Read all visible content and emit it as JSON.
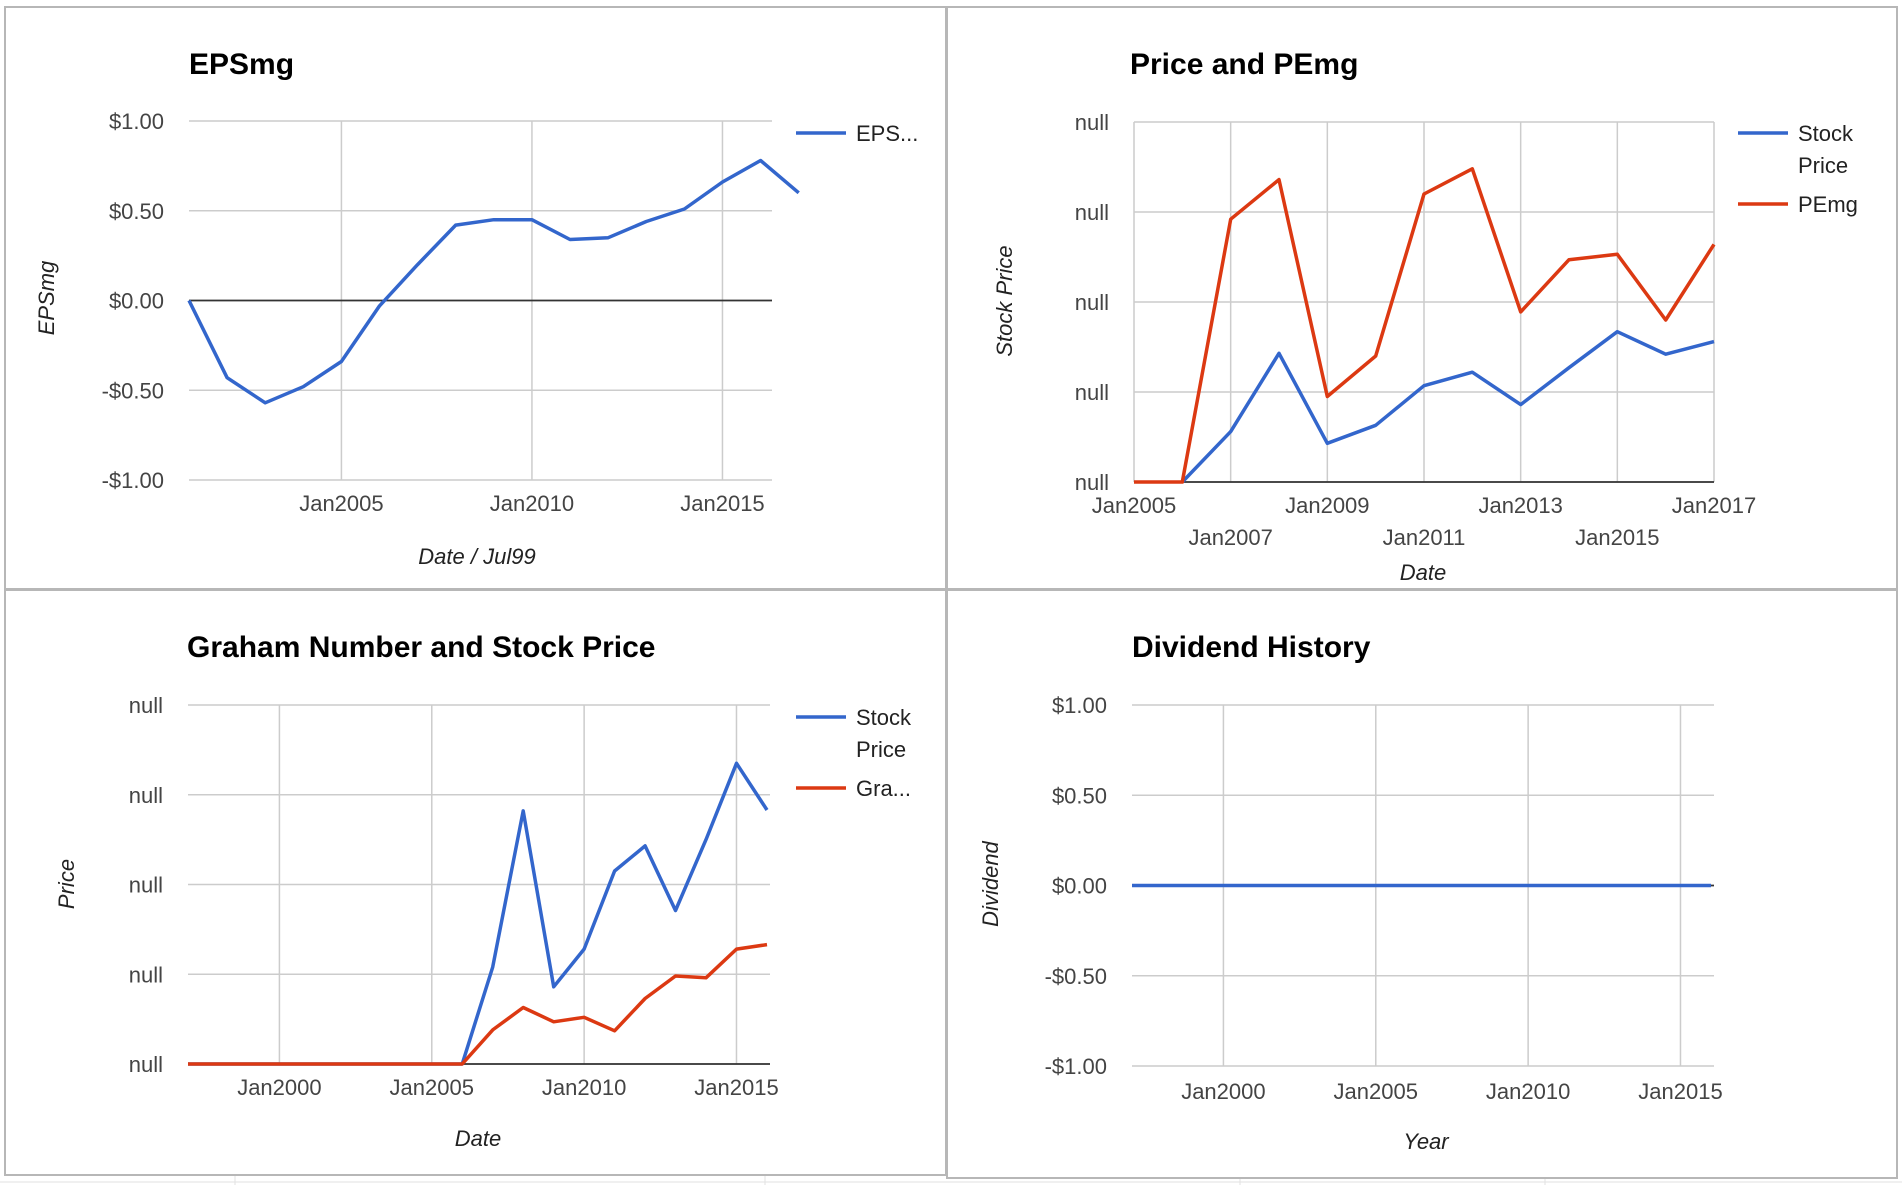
{
  "chart_data": [
    {
      "type": "line",
      "title": "EPSmg",
      "xlabel": "Date / Jul99",
      "ylabel": "EPSmg",
      "ylim": [
        -1.0,
        1.0
      ],
      "yticks": [
        "$1.00",
        "$0.50",
        "$0.00",
        "-$0.50",
        "-$1.00"
      ],
      "xlim": [
        2001.0,
        2016.3
      ],
      "xticks": [
        {
          "label": "Jan2005",
          "x": 2005
        },
        {
          "label": "Jan2010",
          "x": 2010
        },
        {
          "label": "Jan2015",
          "x": 2015
        }
      ],
      "legend": "right",
      "grid": true,
      "series": [
        {
          "name": "EPS...",
          "color": "#3366cc",
          "x": [
            2001.0,
            2002.0,
            2003.0,
            2004.0,
            2005.0,
            2006.0,
            2007.0,
            2008.0,
            2009.0,
            2010.0,
            2011.0,
            2012.0,
            2013.0,
            2014.0,
            2015.0,
            2016.0,
            2017.0
          ],
          "y": [
            0.0,
            -0.43,
            -0.57,
            -0.48,
            -0.34,
            -0.03,
            0.2,
            0.42,
            0.45,
            0.45,
            0.34,
            0.35,
            0.44,
            0.51,
            0.66,
            0.78,
            0.6
          ]
        }
      ]
    },
    {
      "type": "line",
      "title": "Price and PEmg",
      "xlabel": "Date",
      "ylabel": "Stock Price",
      "ylim": [
        0,
        4
      ],
      "yticks": [
        "null",
        "null",
        "null",
        "null",
        "null"
      ],
      "xlim": [
        2005.0,
        2017.0
      ],
      "xticks": [
        {
          "label": "Jan2005",
          "x": 2005,
          "row": 0
        },
        {
          "label": "Jan2007",
          "x": 2007,
          "row": 1
        },
        {
          "label": "Jan2009",
          "x": 2009,
          "row": 0
        },
        {
          "label": "Jan2011",
          "x": 2011,
          "row": 1
        },
        {
          "label": "Jan2013",
          "x": 2013,
          "row": 0
        },
        {
          "label": "Jan2015",
          "x": 2015,
          "row": 1
        },
        {
          "label": "Jan2017",
          "x": 2017,
          "row": 0
        }
      ],
      "legend": "right",
      "grid": true,
      "series": [
        {
          "name": "Stock Price",
          "color": "#3366cc",
          "x": [
            2006.0,
            2007.0,
            2008.0,
            2009.0,
            2010.0,
            2011.0,
            2012.0,
            2013.0,
            2014.0,
            2015.0,
            2016.0,
            2017.0
          ],
          "y": [
            0,
            0.56,
            1.43,
            0.43,
            0.63,
            1.07,
            1.22,
            0.86,
            1.27,
            1.67,
            1.42,
            1.56
          ]
        },
        {
          "name": "PEmg",
          "color": "#dc3912",
          "x": [
            2005.0,
            2006.0,
            2007.0,
            2008.0,
            2009.0,
            2010.0,
            2011.0,
            2012.0,
            2013.0,
            2014.0,
            2015.0,
            2016.0,
            2017.0
          ],
          "y": [
            0,
            0,
            2.92,
            3.36,
            0.95,
            1.4,
            3.2,
            3.48,
            1.89,
            2.47,
            2.53,
            1.8,
            2.64
          ]
        }
      ]
    },
    {
      "type": "line",
      "title": "Graham Number and Stock Price",
      "xlabel": "Date",
      "ylabel": "Price",
      "ylim": [
        0,
        4
      ],
      "yticks": [
        "null",
        "null",
        "null",
        "null",
        "null"
      ],
      "xlim": [
        1997.0,
        2016.1
      ],
      "xticks": [
        {
          "label": "Jan2000",
          "x": 2000
        },
        {
          "label": "Jan2005",
          "x": 2005
        },
        {
          "label": "Jan2010",
          "x": 2010
        },
        {
          "label": "Jan2015",
          "x": 2015
        }
      ],
      "legend": "right",
      "grid": true,
      "series": [
        {
          "name": "Stock Price",
          "color": "#3366cc",
          "x": [
            1997.0,
            2006.0,
            2007.0,
            2008.0,
            2009.0,
            2010.0,
            2011.0,
            2012.0,
            2013.0,
            2014.0,
            2015.0,
            2016.0
          ],
          "y": [
            0,
            0,
            1.08,
            2.82,
            0.86,
            1.28,
            2.15,
            2.43,
            1.71,
            2.5,
            3.35,
            2.83
          ]
        },
        {
          "name": "Gra...",
          "color": "#dc3912",
          "x": [
            1997.0,
            2006.0,
            2007.0,
            2008.0,
            2009.0,
            2010.0,
            2011.0,
            2012.0,
            2013.0,
            2014.0,
            2015.0,
            2016.0
          ],
          "y": [
            0,
            0,
            0.38,
            0.63,
            0.47,
            0.52,
            0.37,
            0.73,
            0.98,
            0.96,
            1.28,
            1.33
          ]
        }
      ]
    },
    {
      "type": "line",
      "title": "Dividend History",
      "xlabel": "Year",
      "ylabel": "Dividend",
      "ylim": [
        -1.0,
        1.0
      ],
      "yticks": [
        "$1.00",
        "$0.50",
        "$0.00",
        "-$0.50",
        "-$1.00"
      ],
      "xlim": [
        1997.0,
        2016.1
      ],
      "xticks": [
        {
          "label": "Jan2000",
          "x": 2000
        },
        {
          "label": "Jan2005",
          "x": 2005
        },
        {
          "label": "Jan2010",
          "x": 2010
        },
        {
          "label": "Jan2015",
          "x": 2015
        }
      ],
      "legend": "none",
      "grid": true,
      "series": [
        {
          "name": "",
          "color": "#3366cc",
          "x": [
            1997.0,
            2016.0
          ],
          "y": [
            0,
            0
          ]
        }
      ]
    }
  ]
}
